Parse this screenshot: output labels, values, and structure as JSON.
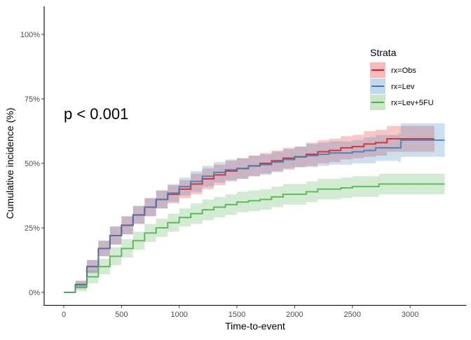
{
  "chart_data": {
    "type": "line",
    "title": "",
    "xlabel": "Time-to-event",
    "ylabel": "Cumulative incidence (%)",
    "xlim": [
      -170,
      3460
    ],
    "ylim": [
      -5,
      105
    ],
    "x_ticks": [
      0,
      500,
      1000,
      1500,
      2000,
      2500,
      3000
    ],
    "x_tick_labels": [
      "0",
      "500",
      "1000",
      "1500",
      "2000",
      "2500",
      "3000"
    ],
    "y_ticks": [
      0,
      25,
      50,
      75,
      100
    ],
    "y_tick_labels": [
      "0%",
      "25%",
      "50%",
      "75%",
      "100%"
    ],
    "grid": false,
    "step": true,
    "annotation": "p < 0.001",
    "legend": {
      "title": "Strata",
      "placement": "top-right"
    },
    "series": [
      {
        "name": "rx=Obs",
        "color": "#E41A1C",
        "x": [
          0,
          100,
          200,
          300,
          400,
          500,
          600,
          700,
          800,
          900,
          1000,
          1100,
          1200,
          1300,
          1400,
          1500,
          1600,
          1700,
          1800,
          1900,
          2000,
          2100,
          2200,
          2300,
          2400,
          2500,
          2600,
          2700,
          2800,
          3210
        ],
        "y": [
          0,
          3,
          10,
          17,
          22,
          26,
          30,
          33,
          36,
          38,
          40,
          42,
          44,
          45.5,
          47,
          48,
          49,
          50,
          51,
          52,
          52.5,
          53.5,
          54.5,
          55,
          56,
          56.5,
          57.5,
          58,
          59.5,
          59.5
        ],
        "lower": [
          0,
          1.5,
          7.5,
          14,
          18.5,
          22.5,
          26.5,
          29.5,
          32.5,
          34.5,
          36.5,
          38,
          40,
          41.5,
          43,
          44,
          45,
          46,
          47,
          48,
          48.5,
          49,
          50,
          50.5,
          51.5,
          52,
          52.5,
          53,
          54.5,
          54.5
        ],
        "upper": [
          0,
          4.5,
          12.5,
          20,
          25.5,
          29.5,
          33.5,
          36.5,
          39.5,
          41.5,
          43.5,
          46,
          48,
          49.5,
          51,
          52,
          53,
          54,
          55,
          56,
          56.5,
          58,
          59,
          59.5,
          60.5,
          61,
          62.5,
          63,
          64.5,
          64.5
        ]
      },
      {
        "name": "rx=Lev",
        "color": "#377EB8",
        "x": [
          0,
          100,
          200,
          300,
          400,
          500,
          600,
          700,
          800,
          900,
          1000,
          1100,
          1200,
          1300,
          1400,
          1500,
          1600,
          1700,
          1800,
          1900,
          2000,
          2100,
          2200,
          2300,
          2400,
          2500,
          2600,
          2700,
          2800,
          2900,
          2920,
          3300
        ],
        "y": [
          0,
          3,
          10,
          17,
          22,
          26,
          30,
          33,
          36,
          38.5,
          41,
          43,
          45,
          46.5,
          47.5,
          48,
          49,
          49.5,
          50.5,
          51.5,
          52.5,
          53,
          53.5,
          54,
          54,
          54.5,
          55,
          56,
          56,
          56,
          59,
          59
        ],
        "lower": [
          0,
          1.5,
          7.5,
          14,
          18.5,
          22.5,
          26.5,
          29.5,
          32.5,
          35,
          37.5,
          39,
          41,
          42.5,
          43.5,
          44,
          45,
          45.5,
          46.5,
          47.5,
          48.5,
          48.5,
          49,
          49.5,
          49.5,
          50,
          50,
          51,
          51,
          50.5,
          52.5,
          52.5
        ],
        "upper": [
          0,
          4.5,
          12.5,
          20,
          25.5,
          29.5,
          33.5,
          36.5,
          39.5,
          42,
          44.5,
          47,
          49,
          50.5,
          51.5,
          52,
          53,
          53.5,
          54.5,
          55.5,
          56.5,
          57.5,
          58,
          58.5,
          58.5,
          59,
          60,
          61,
          61,
          61.5,
          65.5,
          65.5
        ]
      },
      {
        "name": "rx=Lev+5FU",
        "color": "#4DAF4A",
        "x": [
          0,
          100,
          200,
          300,
          400,
          500,
          600,
          700,
          800,
          900,
          1000,
          1100,
          1200,
          1300,
          1400,
          1500,
          1600,
          1700,
          1800,
          1900,
          2000,
          2100,
          2200,
          2300,
          2400,
          2500,
          2600,
          2700,
          2730,
          3300
        ],
        "y": [
          0,
          2,
          6,
          10,
          14,
          17,
          20,
          23,
          25,
          27,
          29,
          30.5,
          32,
          33,
          34,
          35,
          35.5,
          36,
          37,
          38,
          38,
          39,
          40,
          40,
          40.5,
          41,
          41,
          41,
          42,
          42
        ],
        "lower": [
          0,
          0.5,
          3.5,
          7,
          10.5,
          13.5,
          16.5,
          19.5,
          21.5,
          23.5,
          25.5,
          26.5,
          28,
          29,
          30,
          31,
          31.5,
          32,
          33,
          34,
          34,
          35,
          36,
          36,
          36.5,
          37,
          37,
          37,
          38,
          38
        ],
        "upper": [
          0,
          3.5,
          8.5,
          13,
          17.5,
          20.5,
          23.5,
          26.5,
          28.5,
          30.5,
          32.5,
          34.5,
          36,
          37,
          38,
          39,
          39.5,
          40,
          41,
          42,
          42,
          43,
          44,
          44,
          44.5,
          45,
          45,
          45,
          46,
          46
        ]
      }
    ]
  }
}
